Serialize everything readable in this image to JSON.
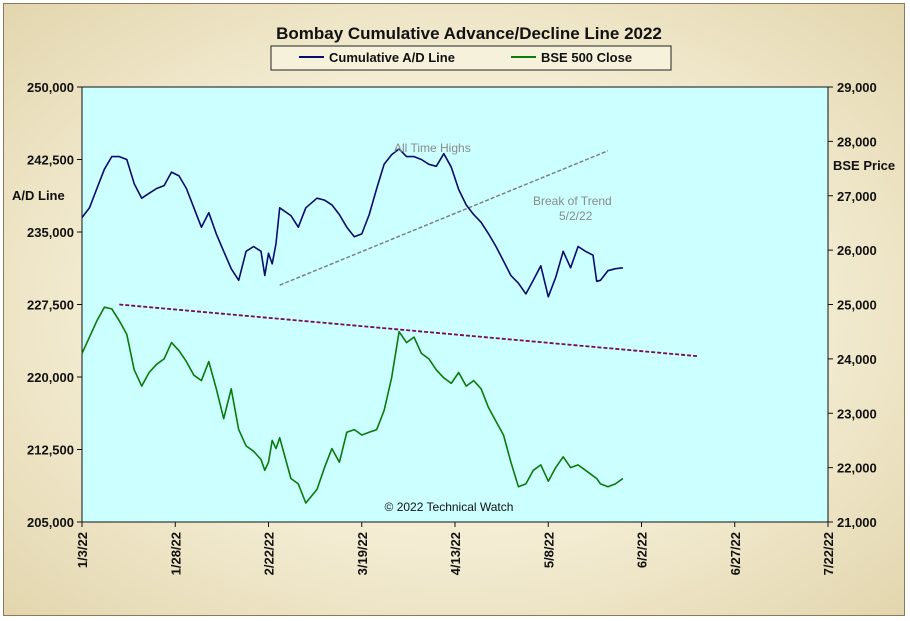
{
  "chart_data": {
    "type": "line",
    "title": "Bombay Cumulative Advance/Decline Line 2022",
    "y_left_label": "A/D Line",
    "y_right_label": "BSE Price",
    "copyright": "© 2022 Technical Watch",
    "legend": [
      "Cumulative A/D Line",
      "BSE 500 Close"
    ],
    "legend_position": "top",
    "x_ticks": [
      "1/3/22",
      "1/28/22",
      "2/22/22",
      "3/19/22",
      "4/13/22",
      "5/8/22",
      "6/2/22",
      "6/27/22",
      "7/22/22"
    ],
    "y_left_ticks": [
      "250,000",
      "242,500",
      "235,000",
      "227,500",
      "220,000",
      "212,500",
      "205,000"
    ],
    "y_right_ticks": [
      "29,000",
      "28,000",
      "27,000",
      "26,000",
      "25,000",
      "24,000",
      "23,000",
      "22,000",
      "21,000"
    ],
    "y_left_range": [
      205000,
      250000
    ],
    "y_right_range": [
      21000,
      29000
    ],
    "x_range": [
      "2022-01-03",
      "2022-07-22"
    ],
    "series": [
      {
        "name": "Cumulative A/D Line",
        "axis": "left",
        "color": "#0a0a6e",
        "x": [
          "2022-01-03",
          "2022-01-05",
          "2022-01-07",
          "2022-01-09",
          "2022-01-11",
          "2022-01-13",
          "2022-01-15",
          "2022-01-17",
          "2022-01-19",
          "2022-01-21",
          "2022-01-23",
          "2022-01-25",
          "2022-01-27",
          "2022-01-29",
          "2022-01-31",
          "2022-02-02",
          "2022-02-04",
          "2022-02-06",
          "2022-02-08",
          "2022-02-10",
          "2022-02-12",
          "2022-02-14",
          "2022-02-16",
          "2022-02-18",
          "2022-02-20",
          "2022-02-21",
          "2022-02-22",
          "2022-02-23",
          "2022-02-24",
          "2022-02-25",
          "2022-02-28",
          "2022-03-02",
          "2022-03-04",
          "2022-03-07",
          "2022-03-09",
          "2022-03-11",
          "2022-03-13",
          "2022-03-15",
          "2022-03-17",
          "2022-03-19",
          "2022-03-21",
          "2022-03-23",
          "2022-03-25",
          "2022-03-27",
          "2022-03-29",
          "2022-03-31",
          "2022-04-02",
          "2022-04-04",
          "2022-04-06",
          "2022-04-08",
          "2022-04-10",
          "2022-04-12",
          "2022-04-14",
          "2022-04-16",
          "2022-04-18",
          "2022-04-20",
          "2022-04-22",
          "2022-04-24",
          "2022-04-26",
          "2022-04-28",
          "2022-04-30",
          "2022-05-02",
          "2022-05-04",
          "2022-05-06",
          "2022-05-08",
          "2022-05-10",
          "2022-05-12",
          "2022-05-14",
          "2022-05-16",
          "2022-05-18",
          "2022-05-20",
          "2022-05-21",
          "2022-05-22",
          "2022-05-24",
          "2022-05-26",
          "2022-05-28"
        ],
        "values": [
          236500,
          237500,
          239500,
          241500,
          242800,
          242800,
          242500,
          240000,
          238500,
          239000,
          239500,
          239800,
          241200,
          240800,
          239500,
          237500,
          235500,
          237000,
          234800,
          233000,
          231200,
          230000,
          233000,
          233500,
          233000,
          230500,
          232800,
          231700,
          233800,
          237500,
          236700,
          235500,
          237500,
          238500,
          238300,
          237800,
          236800,
          235500,
          234500,
          234800,
          236800,
          239500,
          242000,
          243000,
          243600,
          242800,
          242800,
          242500,
          242000,
          241800,
          243100,
          241700,
          239400,
          237800,
          236800,
          236000,
          234800,
          233500,
          232000,
          230500,
          229700,
          228600,
          230000,
          231500,
          228300,
          230300,
          233000,
          231300,
          233500,
          233000,
          232600,
          229900,
          230000,
          231000,
          231200,
          231300
        ]
      },
      {
        "name": "BSE 500 Close",
        "axis": "right",
        "color": "#0a7a0a",
        "x": [
          "2022-01-03",
          "2022-01-05",
          "2022-01-07",
          "2022-01-09",
          "2022-01-11",
          "2022-01-13",
          "2022-01-15",
          "2022-01-17",
          "2022-01-19",
          "2022-01-21",
          "2022-01-23",
          "2022-01-25",
          "2022-01-27",
          "2022-01-29",
          "2022-01-31",
          "2022-02-02",
          "2022-02-04",
          "2022-02-06",
          "2022-02-08",
          "2022-02-10",
          "2022-02-12",
          "2022-02-14",
          "2022-02-16",
          "2022-02-18",
          "2022-02-20",
          "2022-02-21",
          "2022-02-22",
          "2022-02-23",
          "2022-02-24",
          "2022-02-25",
          "2022-02-28",
          "2022-03-02",
          "2022-03-04",
          "2022-03-07",
          "2022-03-09",
          "2022-03-11",
          "2022-03-13",
          "2022-03-15",
          "2022-03-17",
          "2022-03-19",
          "2022-03-21",
          "2022-03-23",
          "2022-03-25",
          "2022-03-27",
          "2022-03-29",
          "2022-03-31",
          "2022-04-02",
          "2022-04-04",
          "2022-04-06",
          "2022-04-08",
          "2022-04-10",
          "2022-04-12",
          "2022-04-14",
          "2022-04-16",
          "2022-04-18",
          "2022-04-20",
          "2022-04-22",
          "2022-04-24",
          "2022-04-26",
          "2022-04-28",
          "2022-04-30",
          "2022-05-02",
          "2022-05-04",
          "2022-05-06",
          "2022-05-08",
          "2022-05-10",
          "2022-05-12",
          "2022-05-14",
          "2022-05-16",
          "2022-05-18",
          "2022-05-20",
          "2022-05-21",
          "2022-05-22",
          "2022-05-24",
          "2022-05-26",
          "2022-05-28"
        ],
        "values": [
          24100,
          24400,
          24700,
          24950,
          24920,
          24700,
          24450,
          23800,
          23500,
          23750,
          23900,
          24000,
          24300,
          24150,
          23950,
          23700,
          23600,
          23950,
          23450,
          22900,
          23450,
          22700,
          22400,
          22300,
          22150,
          21950,
          22100,
          22500,
          22350,
          22550,
          21800,
          21700,
          21350,
          21600,
          22000,
          22350,
          22100,
          22650,
          22700,
          22600,
          22650,
          22700,
          23050,
          23650,
          24500,
          24300,
          24400,
          24100,
          24000,
          23800,
          23650,
          23550,
          23750,
          23500,
          23600,
          23450,
          23100,
          22850,
          22600,
          22100,
          21650,
          21700,
          21950,
          22050,
          21750,
          22000,
          22200,
          22000,
          22050,
          21950,
          21850,
          21800,
          21700,
          21650,
          21700,
          21800
        ]
      }
    ],
    "annotations": [
      {
        "text": "All Time Highs"
      },
      {
        "text": "Break of Trend"
      },
      {
        "text": "5/2/22"
      }
    ],
    "trend_lines": [
      {
        "name": "ad-trendline",
        "axis": "left",
        "color": "#7a7a7a",
        "style": "dashed",
        "x": [
          "2022-02-25",
          "2022-05-24"
        ],
        "values": [
          229500,
          243400
        ]
      },
      {
        "name": "price-trendline",
        "axis": "right",
        "color": "#7a0a5a",
        "style": "dashed",
        "x": [
          "2022-01-13",
          "2022-06-17"
        ],
        "values": [
          25000,
          24050
        ]
      }
    ],
    "colors": {
      "plot_bg": "#ccffff",
      "ad_line": "#0a0a6e",
      "price_line": "#0a7a0a"
    }
  }
}
